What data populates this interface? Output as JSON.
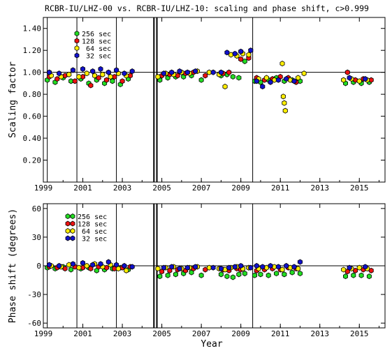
{
  "title": "RCBR-IU/LHZ-00 vs. RCBR-IU/LHZ-10: scaling and phase shift, c>0.999",
  "xlabel": "Year",
  "legend": [
    {
      "label": "256 sec",
      "color": "#22dd22"
    },
    {
      "label": "128 sec",
      "color": "#ee1111"
    },
    {
      "label": " 64 sec",
      "color": "#ffee00"
    },
    {
      "label": " 32 sec",
      "color": "#1111cc"
    }
  ],
  "chart_data": [
    {
      "type": "scatter",
      "ylabel": "Scaling factor",
      "xlim": [
        1999.0,
        2016.3
      ],
      "ylim": [
        0.0,
        1.5
      ],
      "xticks": [
        "1999",
        "2001",
        "2003",
        "2005",
        "2007",
        "2009",
        "2011",
        "2013",
        "2015"
      ],
      "yticks": [
        "0.20",
        "0.40",
        "0.60",
        "0.80",
        "1.00",
        "1.20",
        "1.40"
      ],
      "reference_line": 1.0,
      "event_lines": [
        1999.2,
        2000.7,
        2002.7,
        2004.6,
        2004.75,
        2009.6
      ],
      "series": [
        {
          "name": "256 sec",
          "color": "#22dd22",
          "x": [
            1999.2,
            1999.6,
            2000.0,
            2000.4,
            2000.9,
            2001.3,
            2001.7,
            2002.1,
            2002.5,
            2002.9,
            2003.3,
            2004.9,
            2005.3,
            2005.7,
            2006.1,
            2006.5,
            2007.0,
            2008.0,
            2008.3,
            2008.6,
            2008.9,
            2009.2,
            2009.7,
            2010.0,
            2010.4,
            2010.8,
            2011.2,
            2011.6,
            2012.0,
            2014.3,
            2014.7,
            2015.1,
            2015.5
          ],
          "y": [
            0.93,
            0.91,
            0.95,
            0.92,
            0.94,
            0.9,
            0.93,
            0.9,
            0.92,
            0.89,
            0.94,
            0.93,
            0.95,
            0.96,
            0.96,
            0.97,
            0.93,
            0.97,
            0.98,
            0.96,
            0.95,
            1.1,
            0.92,
            0.91,
            0.93,
            0.95,
            0.92,
            0.93,
            0.92,
            0.9,
            0.91,
            0.9,
            0.91
          ]
        },
        {
          "name": "128 sec",
          "color": "#ee1111",
          "x": [
            1999.3,
            1999.7,
            2000.1,
            2000.6,
            2001.0,
            2001.4,
            2001.8,
            2002.2,
            2002.6,
            2003.0,
            2003.4,
            2005.0,
            2005.4,
            2005.8,
            2006.2,
            2006.6,
            2007.2,
            2008.1,
            2008.4,
            2008.8,
            2009.0,
            2009.4,
            2009.8,
            2010.2,
            2010.6,
            2011.0,
            2011.4,
            2011.8,
            2014.4,
            2014.8,
            2015.2,
            2015.6
          ],
          "y": [
            0.96,
            0.94,
            0.97,
            0.92,
            0.96,
            0.88,
            0.95,
            0.93,
            0.96,
            0.92,
            0.97,
            0.97,
            0.98,
            0.97,
            0.99,
            1.0,
            0.97,
            0.99,
            1.0,
            1.15,
            1.12,
            1.13,
            0.95,
            0.93,
            0.94,
            0.96,
            0.95,
            0.91,
            1.0,
            0.93,
            0.94,
            0.93
          ]
        },
        {
          "name": "64 sec",
          "color": "#ffee00",
          "x": [
            1999.4,
            1999.9,
            2000.3,
            2000.8,
            2001.2,
            2001.6,
            2002.0,
            2002.4,
            2002.8,
            2003.2,
            2004.8,
            2005.2,
            2005.6,
            2006.0,
            2006.4,
            2006.8,
            2007.4,
            2007.9,
            2008.2,
            2008.5,
            2008.8,
            2009.1,
            2009.4,
            2009.9,
            2010.3,
            2010.7,
            2011.1,
            2011.15,
            2011.2,
            2011.25,
            2011.5,
            2011.9,
            2012.2,
            2014.2,
            2014.6,
            2015.0,
            2015.4
          ],
          "y": [
            0.97,
            0.96,
            0.98,
            0.96,
            0.99,
            0.97,
            0.98,
            0.96,
            0.99,
            0.97,
            0.96,
            0.99,
            0.98,
            1.0,
            0.99,
            1.01,
            1.0,
            0.98,
            0.87,
            1.16,
            1.15,
            1.17,
            1.16,
            0.94,
            0.95,
            0.93,
            1.08,
            0.78,
            0.72,
            0.65,
            0.93,
            0.95,
            0.99,
            0.93,
            0.94,
            0.92,
            0.93
          ]
        },
        {
          "name": "32 sec",
          "color": "#1111cc",
          "x": [
            1999.3,
            1999.8,
            2000.5,
            2001.0,
            2001.5,
            2001.9,
            2002.3,
            2002.7,
            2003.1,
            2003.5,
            2005.1,
            2005.5,
            2005.9,
            2006.3,
            2006.7,
            2007.6,
            2008.0,
            2008.3,
            2008.7,
            2009.0,
            2009.5,
            2009.8,
            2010.1,
            2010.5,
            2010.9,
            2011.3,
            2011.7,
            2014.5,
            2015.3
          ],
          "y": [
            1.0,
            0.99,
            1.02,
            1.03,
            1.01,
            1.03,
            1.0,
            1.02,
            0.99,
            1.01,
            0.99,
            1.0,
            1.01,
            1.0,
            1.01,
            1.0,
            1.0,
            1.18,
            1.17,
            1.19,
            1.2,
            0.92,
            0.87,
            0.91,
            0.93,
            0.94,
            0.92,
            0.95,
            0.94
          ]
        }
      ]
    },
    {
      "type": "scatter",
      "ylabel": "Phase shift (degrees)",
      "xlim": [
        1999.0,
        2016.3
      ],
      "ylim": [
        -65,
        65
      ],
      "xticks": [
        "1999",
        "2001",
        "2003",
        "2005",
        "2007",
        "2009",
        "2011",
        "2013",
        "2015"
      ],
      "yticks": [
        "-60",
        "-30",
        "0",
        "30",
        "60"
      ],
      "reference_line": 0,
      "event_lines": [
        1999.2,
        2000.7,
        2002.7,
        2004.6,
        2004.75,
        2009.6
      ],
      "series": [
        {
          "name": "256 sec",
          "color": "#22dd22",
          "x": [
            1999.2,
            1999.6,
            2000.0,
            2000.4,
            2000.9,
            2001.3,
            2001.7,
            2002.1,
            2002.5,
            2002.9,
            2003.3,
            2004.9,
            2005.3,
            2005.7,
            2006.1,
            2006.5,
            2007.0,
            2008.0,
            2008.3,
            2008.6,
            2008.9,
            2009.2,
            2009.7,
            2010.0,
            2010.4,
            2010.8,
            2011.2,
            2011.6,
            2012.0,
            2014.3,
            2014.7,
            2015.1,
            2015.5
          ],
          "y": [
            -2,
            -3,
            -1,
            -4,
            -3,
            -2,
            -5,
            -4,
            -3,
            -2,
            -4,
            -11,
            -10,
            -9,
            -8,
            -7,
            -10,
            -9,
            -11,
            -12,
            -9,
            -8,
            -10,
            -9,
            -10,
            -8,
            -9,
            -7,
            -8,
            -11,
            -10,
            -10,
            -11
          ]
        },
        {
          "name": "128 sec",
          "color": "#ee1111",
          "x": [
            1999.3,
            1999.7,
            2000.1,
            2000.6,
            2001.0,
            2001.4,
            2001.8,
            2002.2,
            2002.6,
            2003.0,
            2003.4,
            2005.0,
            2005.4,
            2005.8,
            2006.2,
            2006.6,
            2007.2,
            2008.1,
            2008.4,
            2008.8,
            2009.0,
            2009.4,
            2009.8,
            2010.2,
            2010.6,
            2011.0,
            2011.4,
            2011.8,
            2014.4,
            2014.8,
            2015.2,
            2015.6
          ],
          "y": [
            -1,
            -2,
            -3,
            -1,
            -2,
            -3,
            -1,
            -2,
            -3,
            -2,
            -1,
            -6,
            -5,
            -4,
            -5,
            -3,
            -4,
            -4,
            -5,
            -3,
            -4,
            -2,
            -5,
            -4,
            -3,
            -4,
            -2,
            -3,
            -6,
            -5,
            -4,
            -5
          ]
        },
        {
          "name": "64 sec",
          "color": "#ffee00",
          "x": [
            1999.4,
            1999.9,
            2000.3,
            2000.8,
            2001.2,
            2001.6,
            2002.0,
            2002.4,
            2002.8,
            2003.2,
            2004.8,
            2005.2,
            2005.6,
            2006.0,
            2006.4,
            2006.8,
            2007.4,
            2007.9,
            2008.2,
            2008.5,
            2008.8,
            2009.1,
            2009.4,
            2009.9,
            2010.3,
            2010.7,
            2011.1,
            2011.5,
            2011.9,
            2014.2,
            2014.6,
            2015.0,
            2015.4
          ],
          "y": [
            0,
            -1,
            1,
            -2,
            0,
            2,
            -1,
            1,
            -3,
            -5,
            -3,
            -2,
            -1,
            -3,
            -2,
            -1,
            -2,
            -3,
            -4,
            -2,
            -1,
            -3,
            -2,
            -3,
            -2,
            -1,
            -4,
            -2,
            -3,
            -4,
            -3,
            -2,
            -3
          ]
        },
        {
          "name": "32 sec",
          "color": "#1111cc",
          "x": [
            1999.3,
            1999.8,
            2000.5,
            2001.0,
            2001.5,
            2001.9,
            2002.3,
            2002.7,
            2003.1,
            2003.5,
            2005.1,
            2005.5,
            2005.9,
            2006.3,
            2006.7,
            2007.6,
            2008.0,
            2008.4,
            2008.7,
            2009.0,
            2009.5,
            2009.8,
            2010.1,
            2010.5,
            2010.9,
            2011.3,
            2011.7,
            2012.0,
            2014.5,
            2015.3
          ],
          "y": [
            1,
            0,
            2,
            3,
            1,
            2,
            4,
            1,
            0,
            -1,
            -2,
            -1,
            -3,
            -2,
            -1,
            -2,
            -3,
            -2,
            -1,
            0,
            -2,
            0,
            -1,
            0,
            -1,
            0,
            -1,
            4,
            -2,
            -1
          ]
        }
      ]
    }
  ]
}
